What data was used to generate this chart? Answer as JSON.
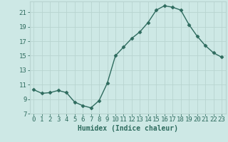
{
  "x": [
    0,
    1,
    2,
    3,
    4,
    5,
    6,
    7,
    8,
    9,
    10,
    11,
    12,
    13,
    14,
    15,
    16,
    17,
    18,
    19,
    20,
    21,
    22,
    23
  ],
  "y": [
    10.3,
    9.8,
    9.9,
    10.2,
    9.9,
    8.6,
    8.1,
    7.8,
    8.8,
    11.2,
    15.0,
    16.2,
    17.4,
    18.3,
    19.6,
    21.3,
    21.9,
    21.7,
    21.3,
    19.3,
    17.7,
    16.4,
    15.4,
    14.8
  ],
  "line_color": "#2e6b5e",
  "bg_color": "#cde8e5",
  "grid_color": "#b8d4d0",
  "xlabel": "Humidex (Indice chaleur)",
  "yticks": [
    7,
    9,
    11,
    13,
    15,
    17,
    19,
    21
  ],
  "xlim": [
    -0.5,
    23.5
  ],
  "ylim": [
    7,
    22.5
  ],
  "marker": "D",
  "markersize": 2.5,
  "linewidth": 1.0,
  "xlabel_fontsize": 7,
  "tick_fontsize": 6.5
}
